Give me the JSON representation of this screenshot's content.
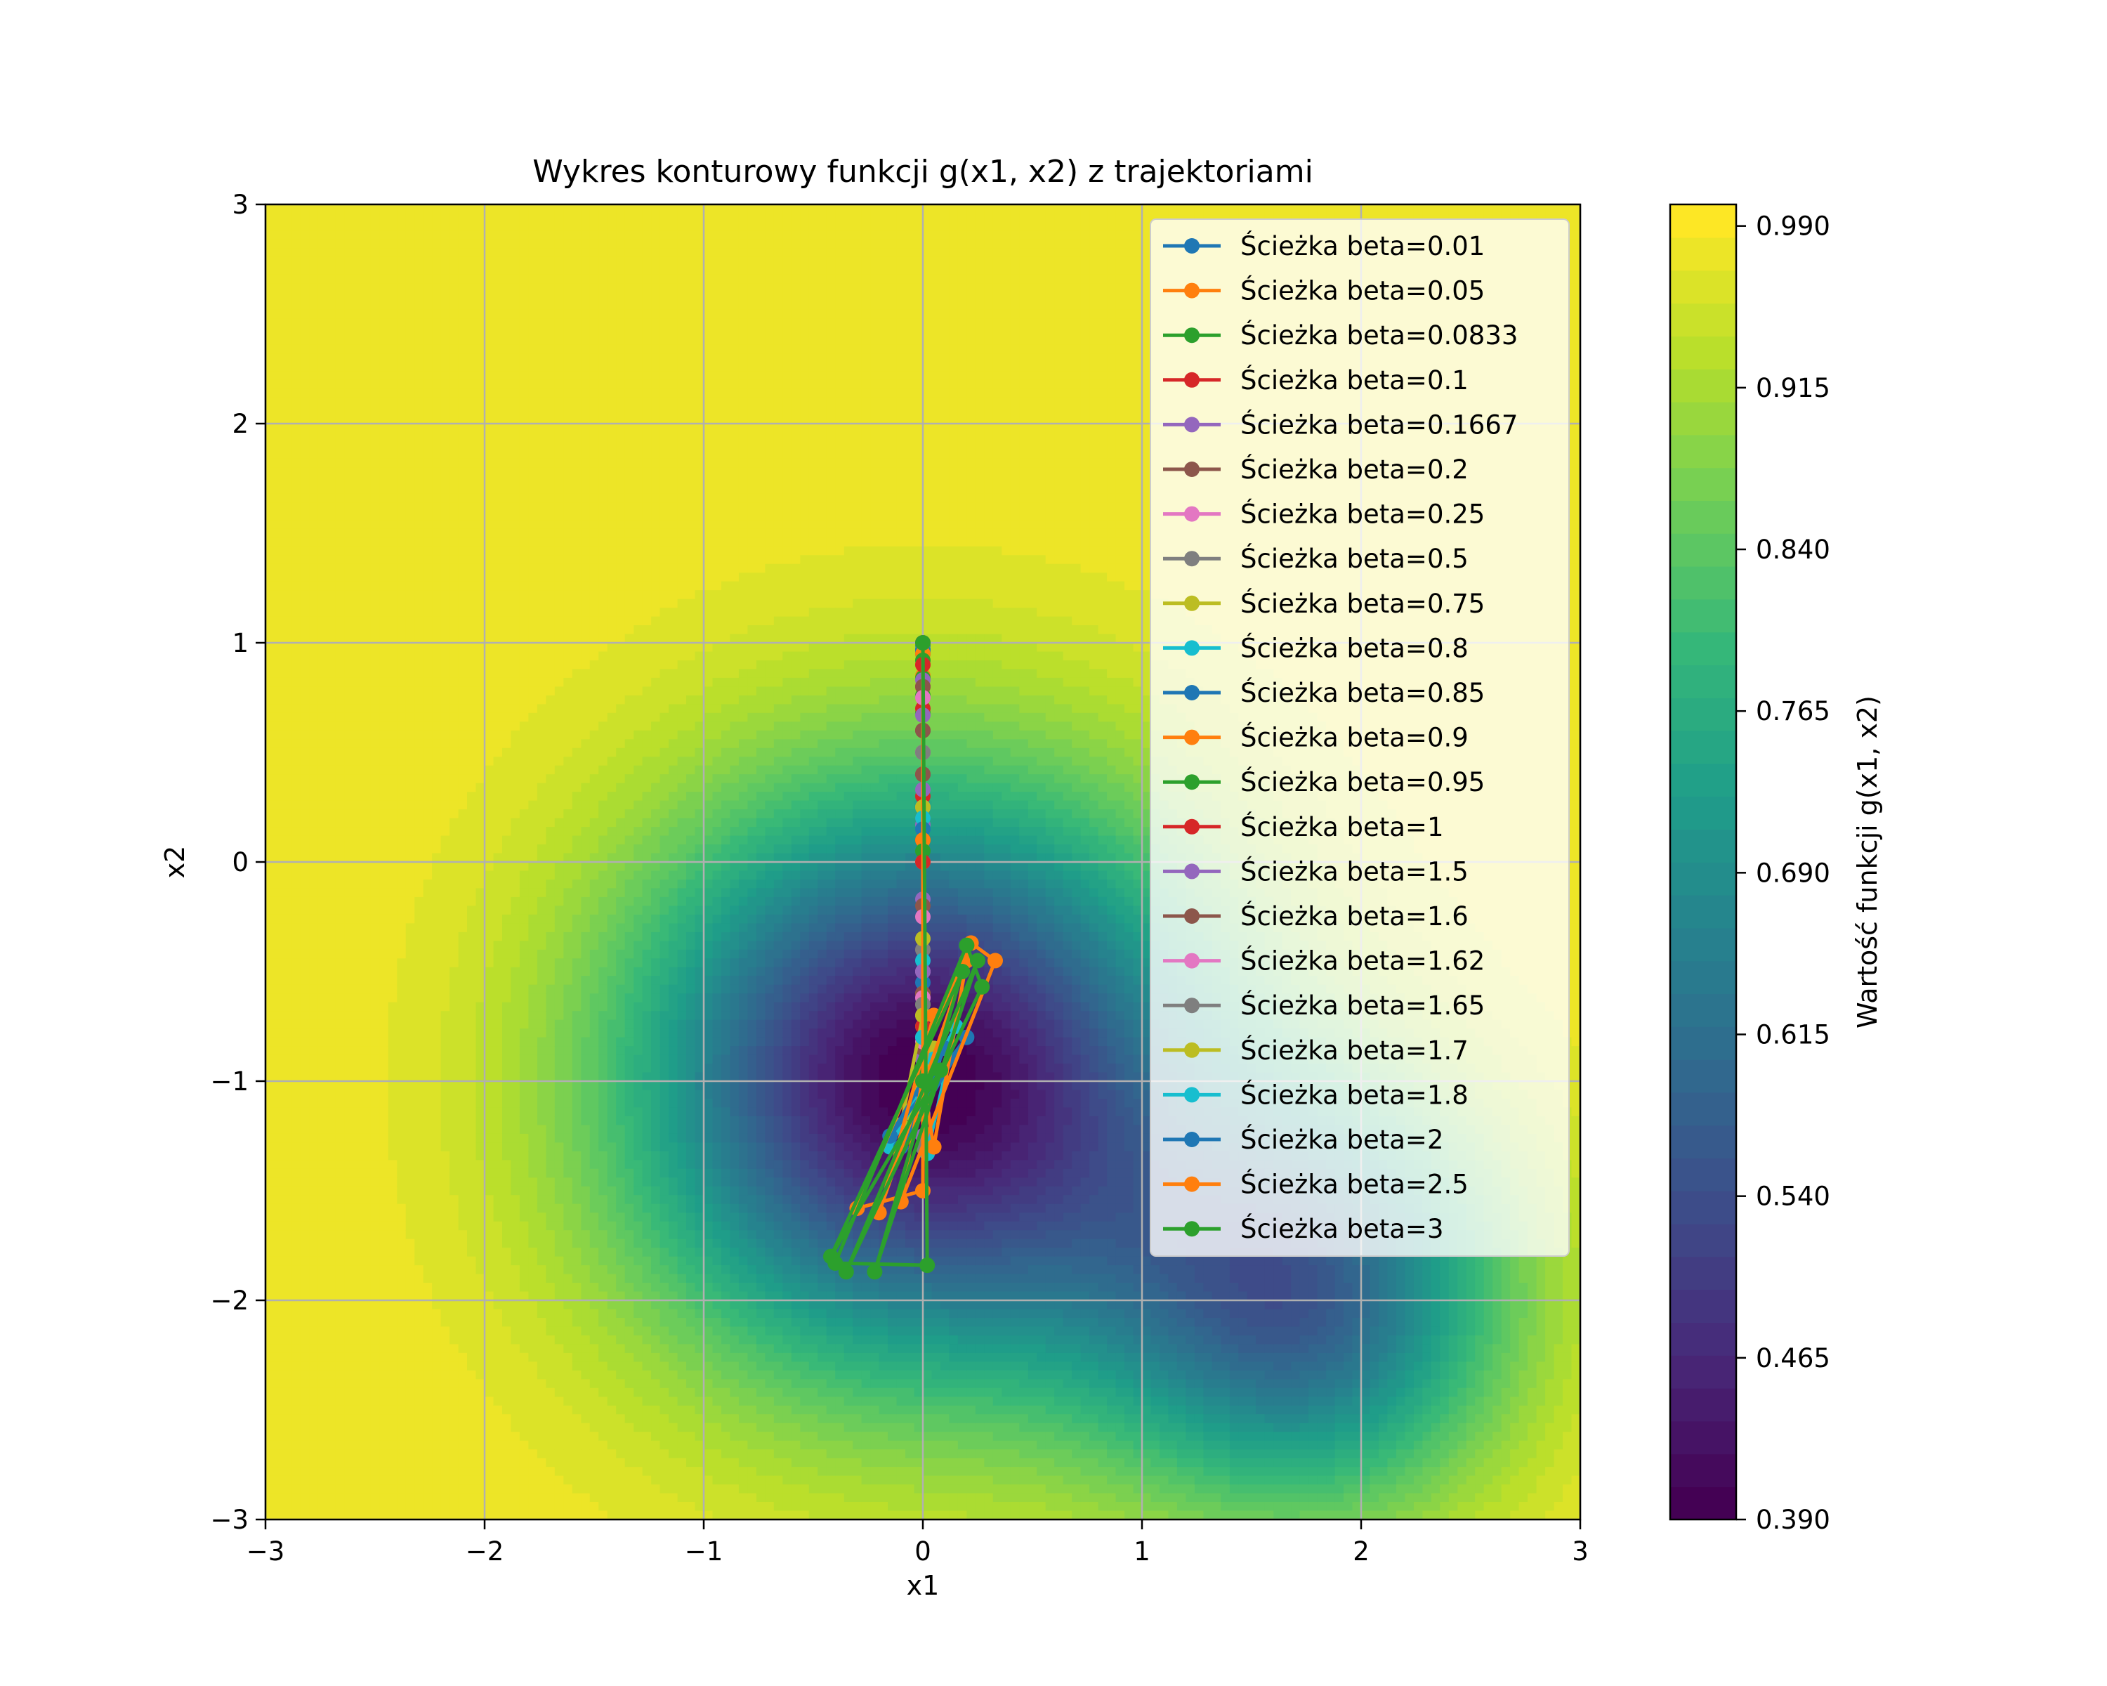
{
  "chart_data": {
    "type": "contour",
    "title": "Wykres konturowy funkcji g(x1, x2) z trajektoriami",
    "xlabel": "x1",
    "ylabel": "x2",
    "xlim": [
      -3,
      3
    ],
    "ylim": [
      -3,
      3
    ],
    "xticks": [
      -3,
      -2,
      -1,
      0,
      1,
      2,
      3
    ],
    "yticks": [
      -3,
      -2,
      -1,
      0,
      1,
      2,
      3
    ],
    "grid": true,
    "legend_position": "upper right",
    "colormap": "viridis",
    "contour_minima": [
      {
        "x1": 0,
        "x2": -1,
        "value": 0.39
      },
      {
        "x1": 1.73,
        "x2": -2,
        "value": 0.6
      }
    ],
    "colorbar": {
      "label": "Wartość funkcji g(x1, x2)",
      "min": 0.39,
      "max": 1.0,
      "ticks": [
        "0.390",
        "0.465",
        "0.540",
        "0.615",
        "0.690",
        "0.765",
        "0.840",
        "0.915",
        "0.990"
      ]
    },
    "series": [
      {
        "name": "Ścieżka beta=0.01",
        "color": "#1f77b4",
        "points": [
          [
            0,
            1
          ],
          [
            0,
            0.99
          ],
          [
            0,
            0.97
          ],
          [
            0,
            0.96
          ],
          [
            0,
            0.95
          ]
        ]
      },
      {
        "name": "Ścieżka beta=0.05",
        "color": "#ff7f0e",
        "points": [
          [
            0,
            1
          ],
          [
            0,
            0.95
          ],
          [
            0,
            0.9
          ],
          [
            0,
            0.85
          ],
          [
            0,
            0.8
          ],
          [
            0,
            0.75
          ]
        ]
      },
      {
        "name": "Ścieżka beta=0.0833",
        "color": "#2ca02c",
        "points": [
          [
            0,
            1
          ],
          [
            0,
            0.92
          ],
          [
            0,
            0.84
          ],
          [
            0,
            0.76
          ],
          [
            0,
            0.68
          ],
          [
            0,
            0.6
          ]
        ]
      },
      {
        "name": "Ścieżka beta=0.1",
        "color": "#d62728",
        "points": [
          [
            0,
            1
          ],
          [
            0,
            0.9
          ],
          [
            0,
            0.8
          ],
          [
            0,
            0.7
          ],
          [
            0,
            0.6
          ],
          [
            0,
            0.5
          ],
          [
            0,
            0.4
          ],
          [
            0,
            0.3
          ],
          [
            0,
            0.2
          ],
          [
            0,
            0.1
          ]
        ]
      },
      {
        "name": "Ścieżka beta=0.1667",
        "color": "#9467bd",
        "points": [
          [
            0,
            1
          ],
          [
            0,
            0.83
          ],
          [
            0,
            0.67
          ],
          [
            0,
            0.5
          ],
          [
            0,
            0.33
          ],
          [
            0,
            0.17
          ],
          [
            0,
            0
          ],
          [
            0,
            -0.17
          ]
        ]
      },
      {
        "name": "Ścieżka beta=0.2",
        "color": "#8c564b",
        "points": [
          [
            0,
            1
          ],
          [
            0,
            0.8
          ],
          [
            0,
            0.6
          ],
          [
            0,
            0.4
          ],
          [
            0,
            0.2
          ],
          [
            0,
            0
          ],
          [
            0,
            -0.2
          ],
          [
            0,
            -0.4
          ]
        ]
      },
      {
        "name": "Ścieżka beta=0.25",
        "color": "#e377c2",
        "points": [
          [
            0,
            1
          ],
          [
            0,
            0.75
          ],
          [
            0,
            0.5
          ],
          [
            0,
            0.25
          ],
          [
            0,
            0
          ],
          [
            0,
            -0.25
          ],
          [
            0,
            -0.5
          ],
          [
            0,
            -0.7
          ]
        ]
      },
      {
        "name": "Ścieżka beta=0.5",
        "color": "#7f7f7f",
        "points": [
          [
            0,
            1
          ],
          [
            0,
            0.5
          ],
          [
            0,
            0
          ],
          [
            0,
            -0.4
          ],
          [
            0,
            -0.7
          ],
          [
            0,
            -0.85
          ],
          [
            0,
            -0.95
          ],
          [
            0,
            -1
          ]
        ]
      },
      {
        "name": "Ścieżka beta=0.75",
        "color": "#bcbd22",
        "points": [
          [
            0,
            1
          ],
          [
            0,
            0.25
          ],
          [
            0,
            -0.35
          ],
          [
            0,
            -0.75
          ],
          [
            0,
            -0.95
          ],
          [
            0,
            -1
          ]
        ]
      },
      {
        "name": "Ścieżka beta=0.8",
        "color": "#17becf",
        "points": [
          [
            0,
            1
          ],
          [
            0,
            0.2
          ],
          [
            0,
            -0.45
          ],
          [
            0,
            -0.8
          ],
          [
            0,
            -1
          ]
        ]
      },
      {
        "name": "Ścieżka beta=0.85",
        "color": "#1f77b4",
        "points": [
          [
            0,
            1
          ],
          [
            0,
            0.15
          ],
          [
            0,
            -0.55
          ],
          [
            0,
            -0.88
          ],
          [
            0,
            -1
          ]
        ]
      },
      {
        "name": "Ścieżka beta=0.9",
        "color": "#ff7f0e",
        "points": [
          [
            0,
            1
          ],
          [
            0,
            0.1
          ],
          [
            0,
            -0.6
          ],
          [
            0,
            -0.9
          ],
          [
            0,
            -1
          ]
        ]
      },
      {
        "name": "Ścieżka beta=0.95",
        "color": "#2ca02c",
        "points": [
          [
            0,
            1
          ],
          [
            0,
            0.05
          ],
          [
            0,
            -0.65
          ],
          [
            0,
            -0.95
          ],
          [
            0,
            -1
          ]
        ]
      },
      {
        "name": "Ścieżka beta=1",
        "color": "#d62728",
        "points": [
          [
            0,
            1
          ],
          [
            0,
            0
          ],
          [
            0,
            -0.75
          ],
          [
            0,
            -1
          ]
        ]
      },
      {
        "name": "Ścieżka beta=1.5",
        "color": "#9467bd",
        "points": [
          [
            0,
            1
          ],
          [
            0,
            -0.5
          ],
          [
            0,
            -1.25
          ],
          [
            0,
            -0.9
          ],
          [
            0,
            -1.05
          ],
          [
            0,
            -1
          ]
        ]
      },
      {
        "name": "Ścieżka beta=1.6",
        "color": "#8c564b",
        "points": [
          [
            0,
            1
          ],
          [
            0,
            -0.6
          ],
          [
            0,
            -1.3
          ],
          [
            0,
            -0.85
          ],
          [
            0,
            -1.1
          ],
          [
            0,
            -1
          ]
        ]
      },
      {
        "name": "Ścieżka beta=1.62",
        "color": "#e377c2",
        "points": [
          [
            0,
            1
          ],
          [
            0,
            -0.62
          ],
          [
            0,
            -1.3
          ],
          [
            0,
            -0.82
          ],
          [
            0,
            -1.12
          ],
          [
            0,
            -1
          ]
        ]
      },
      {
        "name": "Ścieżka beta=1.65",
        "color": "#7f7f7f",
        "points": [
          [
            0,
            1
          ],
          [
            0,
            -0.65
          ],
          [
            0,
            -1.3
          ],
          [
            0,
            -0.8
          ],
          [
            0,
            -1.15
          ],
          [
            0,
            -1
          ]
        ]
      },
      {
        "name": "Ścieżka beta=1.7",
        "color": "#bcbd22",
        "points": [
          [
            0,
            1
          ],
          [
            0,
            -0.7
          ],
          [
            -0.1,
            -1.2
          ],
          [
            0.05,
            -0.85
          ],
          [
            -0.05,
            -1.15
          ],
          [
            0,
            -1
          ]
        ]
      },
      {
        "name": "Ścieżka beta=1.8",
        "color": "#17becf",
        "points": [
          [
            0,
            1
          ],
          [
            0,
            -0.8
          ],
          [
            0.02,
            -1.33
          ],
          [
            0.15,
            -0.75
          ],
          [
            -0.15,
            -1.3
          ],
          [
            0.05,
            -0.9
          ],
          [
            0,
            -1.05
          ]
        ]
      },
      {
        "name": "Ścieżka beta=2",
        "color": "#1f77b4",
        "points": [
          [
            0,
            1
          ],
          [
            0,
            -1.0
          ],
          [
            -0.15,
            -1.25
          ],
          [
            0.2,
            -0.8
          ],
          [
            -0.1,
            -1.3
          ],
          [
            0.1,
            -0.85
          ],
          [
            0,
            -1.05
          ]
        ]
      },
      {
        "name": "Ścieżka beta=2.5",
        "color": "#ff7f0e",
        "points": [
          [
            0,
            1
          ],
          [
            0,
            -1.5
          ],
          [
            -0.3,
            -1.58
          ],
          [
            0.22,
            -0.37
          ],
          [
            0.33,
            -0.45
          ],
          [
            -0.1,
            -1.55
          ],
          [
            0.05,
            -0.7
          ],
          [
            -0.2,
            -1.6
          ],
          [
            0.2,
            -0.45
          ],
          [
            0.05,
            -1.3
          ],
          [
            0,
            -1.0
          ]
        ]
      },
      {
        "name": "Ścieżka beta=3",
        "color": "#2ca02c",
        "points": [
          [
            0,
            1
          ],
          [
            0.02,
            -1.84
          ],
          [
            -0.4,
            -1.83
          ],
          [
            0.2,
            -0.38
          ],
          [
            0.27,
            -0.57
          ],
          [
            -0.35,
            -1.87
          ],
          [
            0.25,
            -0.45
          ],
          [
            -0.22,
            -1.87
          ],
          [
            0.18,
            -0.5
          ],
          [
            -0.42,
            -1.8
          ],
          [
            0.08,
            -0.95
          ],
          [
            0,
            -1.0
          ]
        ]
      }
    ]
  }
}
